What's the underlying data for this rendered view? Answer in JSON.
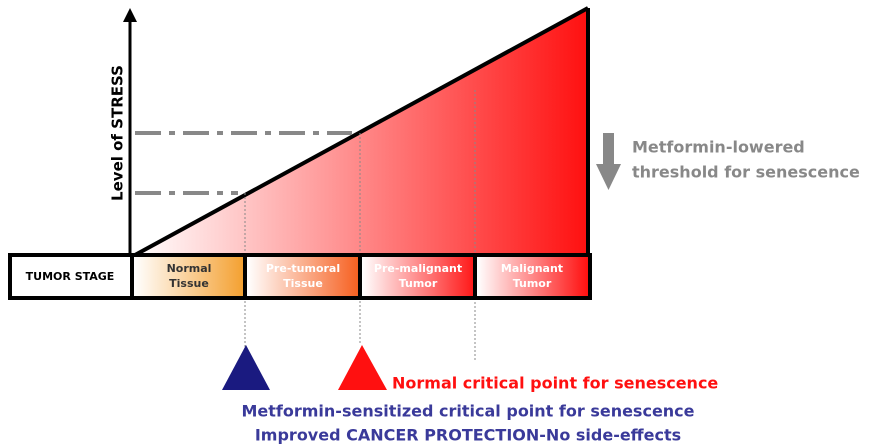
{
  "axis_label": "Level of STRESS",
  "table": {
    "header": "TUMOR STAGE",
    "stages": [
      [
        "Normal",
        "Tissue"
      ],
      [
        "Pre-tumoral",
        "Tissue"
      ],
      [
        "Pre-malignant",
        "Tumor"
      ],
      [
        "Malignant",
        "Tumor"
      ]
    ]
  },
  "side_note": [
    "Metformin-lowered",
    "threshold for senescence"
  ],
  "normal_point": "Normal critical point for senescence",
  "metformin_point": [
    "Metformin-sensitized critical point for senescence",
    "Improved CANCER PROTECTION-No side-effects"
  ]
}
